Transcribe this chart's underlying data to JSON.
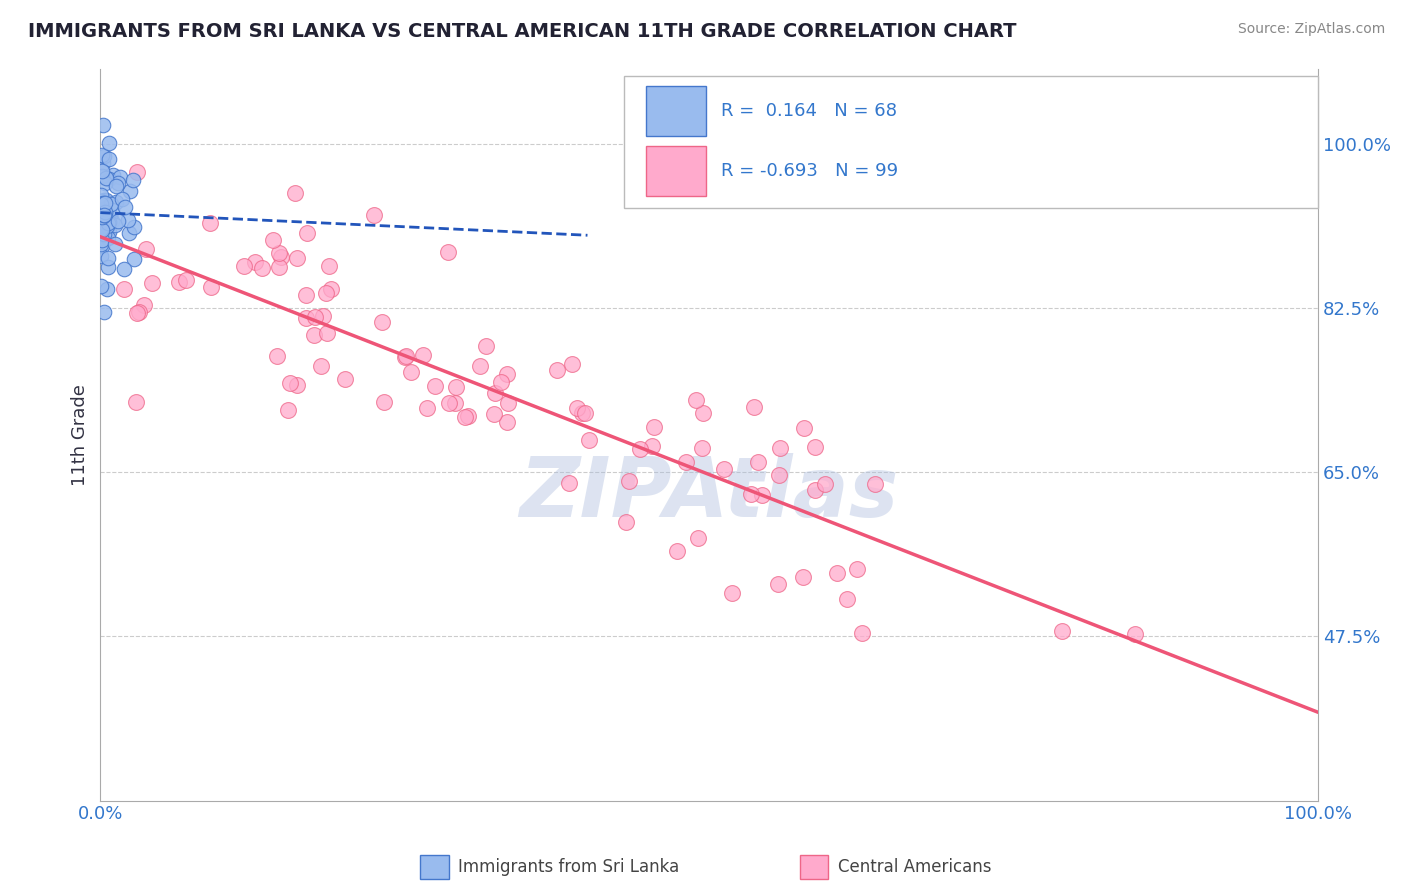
{
  "title": "IMMIGRANTS FROM SRI LANKA VS CENTRAL AMERICAN 11TH GRADE CORRELATION CHART",
  "source": "Source: ZipAtlas.com",
  "ylabel": "11th Grade",
  "xlim": [
    0.0,
    1.0
  ],
  "ylim": [
    0.3,
    1.08
  ],
  "yticks": [
    0.475,
    0.65,
    0.825,
    1.0
  ],
  "ytick_labels": [
    "47.5%",
    "65.0%",
    "82.5%",
    "100.0%"
  ],
  "xticks": [
    0.0,
    1.0
  ],
  "xtick_labels": [
    "0.0%",
    "100.0%"
  ],
  "blue_fill_color": "#99BBEE",
  "blue_edge_color": "#4477CC",
  "pink_fill_color": "#FFAACC",
  "pink_edge_color": "#EE6688",
  "blue_line_color": "#2255BB",
  "pink_line_color": "#EE5577",
  "blue_R": 0.164,
  "blue_N": 68,
  "pink_R": -0.693,
  "pink_N": 99,
  "legend_label_blue": "Immigrants from Sri Lanka",
  "legend_label_pink": "Central Americans",
  "watermark": "ZIPAtlas",
  "watermark_color": "#AABBDD",
  "background_color": "#FFFFFF",
  "grid_color": "#CCCCCC",
  "title_color": "#222233",
  "source_color": "#888888",
  "tick_label_color": "#3377CC",
  "ylabel_color": "#333344",
  "blue_seed": 42,
  "pink_seed": 7
}
